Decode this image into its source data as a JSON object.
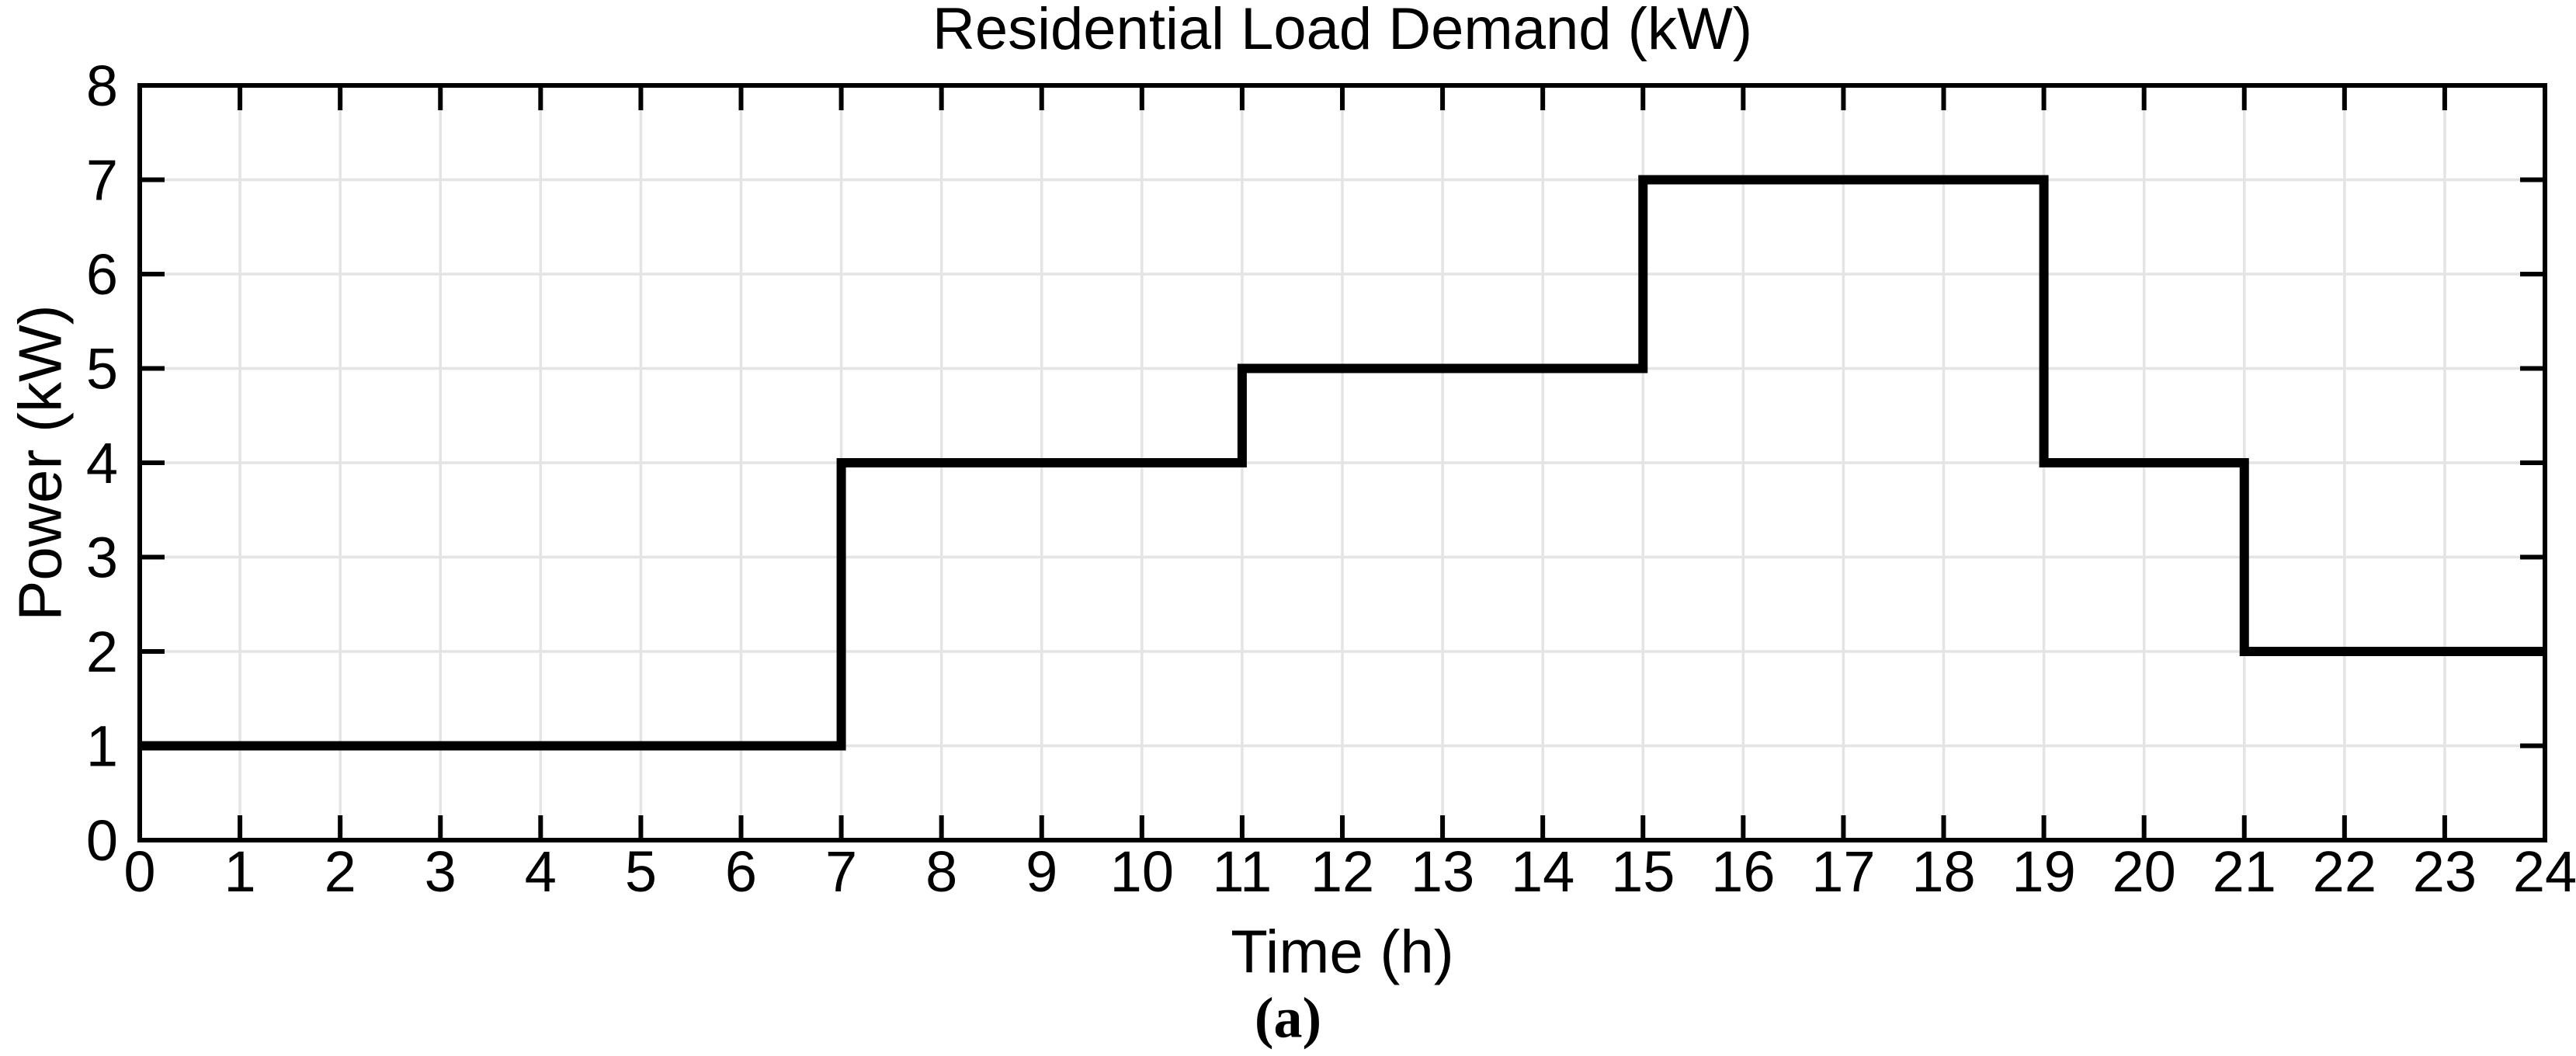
{
  "chart_data": {
    "type": "line",
    "line_style": "step-post",
    "title": "Residential Load Demand (kW)",
    "xlabel": "Time (h)",
    "ylabel": "Power (kW)",
    "caption": "(a)",
    "xlim": [
      0,
      24
    ],
    "ylim": [
      0,
      8
    ],
    "xticks": [
      0,
      1,
      2,
      3,
      4,
      5,
      6,
      7,
      8,
      9,
      10,
      11,
      12,
      13,
      14,
      15,
      16,
      17,
      18,
      19,
      20,
      21,
      22,
      23,
      24
    ],
    "yticks": [
      0,
      1,
      2,
      3,
      4,
      5,
      6,
      7,
      8
    ],
    "grid": true,
    "legend": "none",
    "series": [
      {
        "name": "Residential load demand",
        "x": [
          0,
          7,
          11,
          15,
          19,
          21,
          24
        ],
        "y": [
          1,
          4,
          5,
          7,
          4,
          2,
          2
        ]
      }
    ],
    "segments": [
      {
        "from_h": 0,
        "to_h": 7,
        "kw": 1
      },
      {
        "from_h": 7,
        "to_h": 11,
        "kw": 4
      },
      {
        "from_h": 11,
        "to_h": 15,
        "kw": 5
      },
      {
        "from_h": 15,
        "to_h": 19,
        "kw": 7
      },
      {
        "from_h": 19,
        "to_h": 21,
        "kw": 4
      },
      {
        "from_h": 21,
        "to_h": 24,
        "kw": 2
      }
    ],
    "colors": {
      "line": "#000000",
      "grid": "#e4e4e4",
      "axis": "#000000",
      "text": "#000000",
      "background": "#ffffff"
    }
  }
}
